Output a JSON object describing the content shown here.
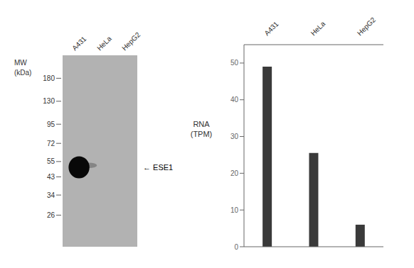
{
  "chart_data": {
    "type": "bar",
    "categories": [
      "A431",
      "HeLa",
      "HepG2"
    ],
    "values": [
      49.0,
      25.5,
      6.0
    ],
    "color": "#3a3a3a",
    "ylabel": "RNA\n(TPM)",
    "ylim": [
      0,
      55
    ],
    "yticks": [
      0,
      10,
      20,
      30,
      40,
      50
    ],
    "mw_markers": [
      180,
      130,
      95,
      72,
      55,
      43,
      34,
      26
    ],
    "annotations": [
      "MW",
      "(kDa)",
      "← ESE1"
    ]
  }
}
